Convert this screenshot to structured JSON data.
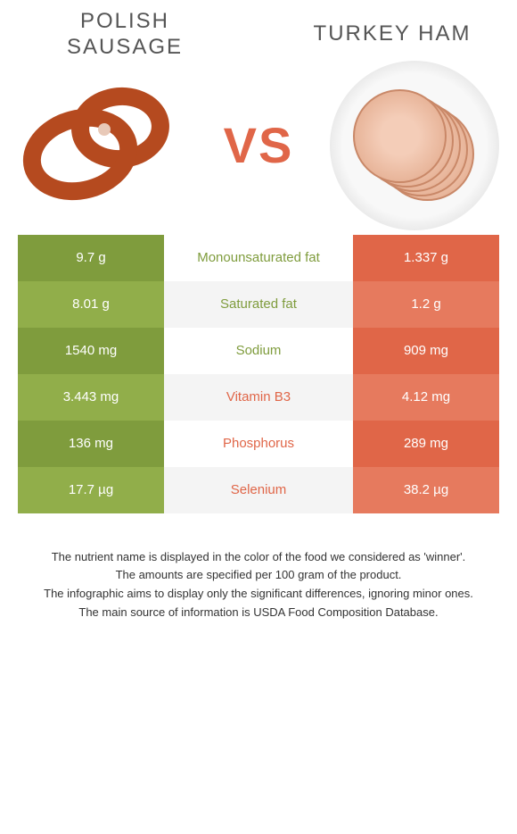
{
  "header": {
    "left_title": "POLISH SAUSAGE",
    "right_title": "TURKEY HAM",
    "vs": "VS"
  },
  "colors": {
    "left_dark": "#7f9c3d",
    "left_light": "#91ae4a",
    "right_dark": "#e06648",
    "right_light": "#e67a5e",
    "row_alt_bg": "#f4f4f4"
  },
  "rows": [
    {
      "left": "9.7 g",
      "label": "Monounsaturated fat",
      "right": "1.337 g",
      "winner": "left"
    },
    {
      "left": "8.01 g",
      "label": "Saturated fat",
      "right": "1.2 g",
      "winner": "left"
    },
    {
      "left": "1540 mg",
      "label": "Sodium",
      "right": "909 mg",
      "winner": "left"
    },
    {
      "left": "3.443 mg",
      "label": "Vitamin B3",
      "right": "4.12 mg",
      "winner": "right"
    },
    {
      "left": "136 mg",
      "label": "Phosphorus",
      "right": "289 mg",
      "winner": "right"
    },
    {
      "left": "17.7 µg",
      "label": "Selenium",
      "right": "38.2 µg",
      "winner": "right"
    }
  ],
  "footer": {
    "line1": "The nutrient name is displayed in the color of the food we considered as 'winner'.",
    "line2": "The amounts are specified per 100 gram of the product.",
    "line3": "The infographic aims to display only the significant differences, ignoring minor ones.",
    "line4": "The main source of information is USDA Food Composition Database."
  }
}
